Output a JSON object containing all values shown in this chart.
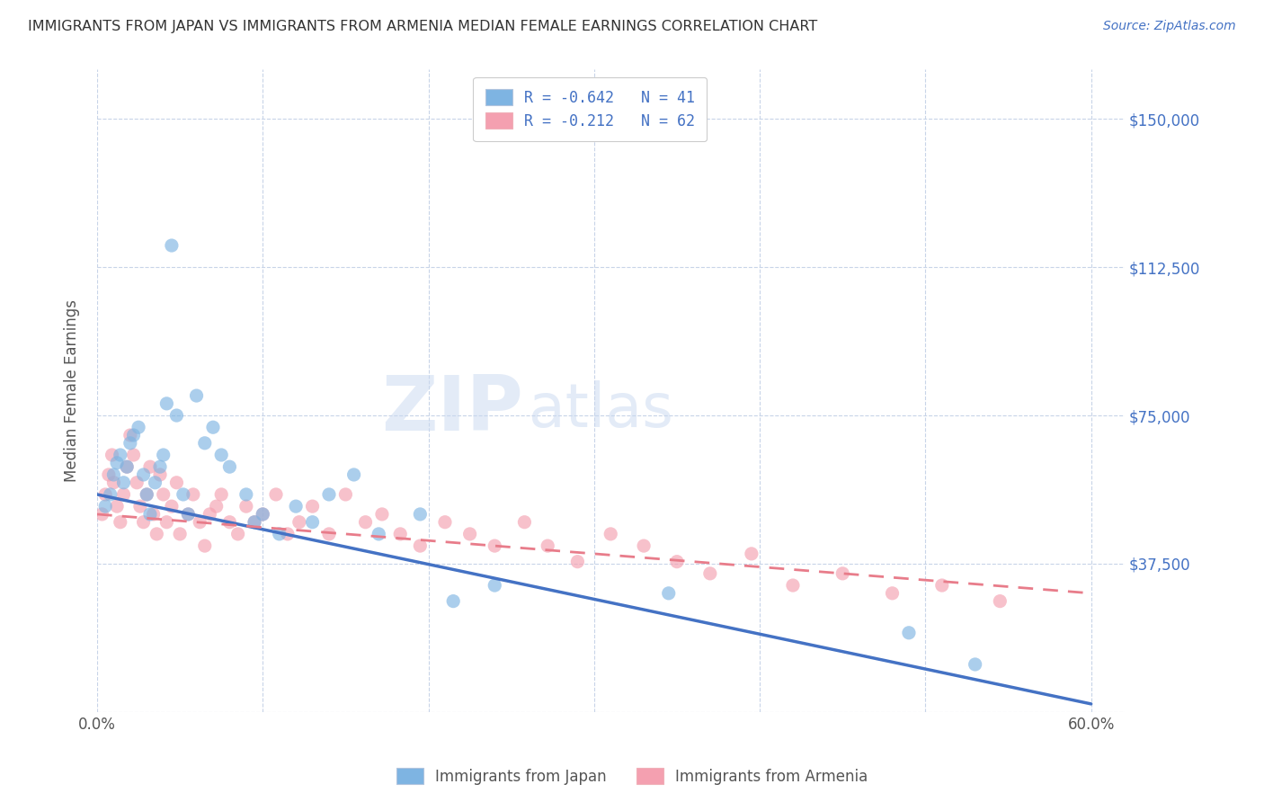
{
  "title": "IMMIGRANTS FROM JAPAN VS IMMIGRANTS FROM ARMENIA MEDIAN FEMALE EARNINGS CORRELATION CHART",
  "source": "Source: ZipAtlas.com",
  "ylabel": "Median Female Earnings",
  "xlim": [
    0.0,
    0.62
  ],
  "ylim": [
    0,
    162500
  ],
  "yticks": [
    0,
    37500,
    75000,
    112500,
    150000
  ],
  "xticks": [
    0.0,
    0.1,
    0.2,
    0.3,
    0.4,
    0.5,
    0.6
  ],
  "xtick_labels": [
    "0.0%",
    "",
    "",
    "",
    "",
    "",
    "60.0%"
  ],
  "japan_color": "#7eb4e2",
  "armenia_color": "#f4a0b0",
  "japan_R": -0.642,
  "japan_N": 41,
  "armenia_R": -0.212,
  "armenia_N": 62,
  "japan_line_color": "#4472c4",
  "armenia_line_color": "#e87c8a",
  "background_color": "#ffffff",
  "grid_color": "#c8d4e8",
  "legend_label_japan": "Immigrants from Japan",
  "legend_label_armenia": "Immigrants from Armenia",
  "japan_scatter_x": [
    0.005,
    0.008,
    0.01,
    0.012,
    0.014,
    0.016,
    0.018,
    0.02,
    0.022,
    0.025,
    0.028,
    0.03,
    0.032,
    0.035,
    0.038,
    0.04,
    0.042,
    0.045,
    0.048,
    0.052,
    0.055,
    0.06,
    0.065,
    0.07,
    0.075,
    0.08,
    0.09,
    0.095,
    0.1,
    0.11,
    0.12,
    0.13,
    0.14,
    0.155,
    0.17,
    0.195,
    0.215,
    0.24,
    0.345,
    0.49,
    0.53
  ],
  "japan_scatter_y": [
    52000,
    55000,
    60000,
    63000,
    65000,
    58000,
    62000,
    68000,
    70000,
    72000,
    60000,
    55000,
    50000,
    58000,
    62000,
    65000,
    78000,
    118000,
    75000,
    55000,
    50000,
    80000,
    68000,
    72000,
    65000,
    62000,
    55000,
    48000,
    50000,
    45000,
    52000,
    48000,
    55000,
    60000,
    45000,
    50000,
    28000,
    32000,
    30000,
    20000,
    12000
  ],
  "armenia_scatter_x": [
    0.003,
    0.005,
    0.007,
    0.009,
    0.01,
    0.012,
    0.014,
    0.016,
    0.018,
    0.02,
    0.022,
    0.024,
    0.026,
    0.028,
    0.03,
    0.032,
    0.034,
    0.036,
    0.038,
    0.04,
    0.042,
    0.045,
    0.048,
    0.05,
    0.055,
    0.058,
    0.062,
    0.065,
    0.068,
    0.072,
    0.075,
    0.08,
    0.085,
    0.09,
    0.095,
    0.1,
    0.108,
    0.115,
    0.122,
    0.13,
    0.14,
    0.15,
    0.162,
    0.172,
    0.183,
    0.195,
    0.21,
    0.225,
    0.24,
    0.258,
    0.272,
    0.29,
    0.31,
    0.33,
    0.35,
    0.37,
    0.395,
    0.42,
    0.45,
    0.48,
    0.51,
    0.545
  ],
  "armenia_scatter_y": [
    50000,
    55000,
    60000,
    65000,
    58000,
    52000,
    48000,
    55000,
    62000,
    70000,
    65000,
    58000,
    52000,
    48000,
    55000,
    62000,
    50000,
    45000,
    60000,
    55000,
    48000,
    52000,
    58000,
    45000,
    50000,
    55000,
    48000,
    42000,
    50000,
    52000,
    55000,
    48000,
    45000,
    52000,
    48000,
    50000,
    55000,
    45000,
    48000,
    52000,
    45000,
    55000,
    48000,
    50000,
    45000,
    42000,
    48000,
    45000,
    42000,
    48000,
    42000,
    38000,
    45000,
    42000,
    38000,
    35000,
    40000,
    32000,
    35000,
    30000,
    32000,
    28000
  ]
}
